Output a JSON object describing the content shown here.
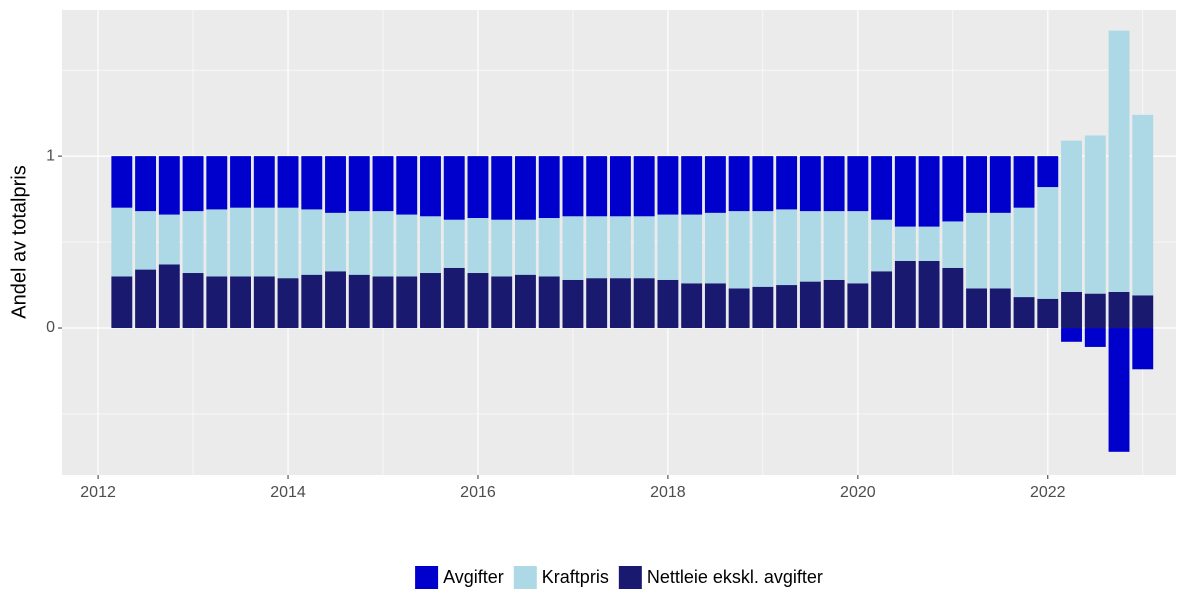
{
  "chart_data": {
    "type": "bar",
    "stacked": true,
    "y_label": "Andel av totalpris",
    "x": [
      2012.25,
      2012.5,
      2012.75,
      2013.0,
      2013.25,
      2013.5,
      2013.75,
      2014.0,
      2014.25,
      2014.5,
      2014.75,
      2015.0,
      2015.25,
      2015.5,
      2015.75,
      2016.0,
      2016.25,
      2016.5,
      2016.75,
      2017.0,
      2017.25,
      2017.5,
      2017.75,
      2018.0,
      2018.25,
      2018.5,
      2018.75,
      2019.0,
      2019.25,
      2019.5,
      2019.75,
      2020.0,
      2020.25,
      2020.5,
      2020.75,
      2021.0,
      2021.25,
      2021.5,
      2021.75,
      2022.0,
      2022.25,
      2022.5,
      2022.75,
      2023.0
    ],
    "series": [
      {
        "name": "Avgifter",
        "color": "#0000cd",
        "values": [
          0.3,
          0.32,
          0.34,
          0.32,
          0.31,
          0.3,
          0.3,
          0.3,
          0.31,
          0.33,
          0.32,
          0.32,
          0.34,
          0.35,
          0.37,
          0.36,
          0.37,
          0.37,
          0.36,
          0.35,
          0.35,
          0.35,
          0.35,
          0.34,
          0.34,
          0.33,
          0.32,
          0.32,
          0.31,
          0.32,
          0.32,
          0.32,
          0.37,
          0.41,
          0.41,
          0.38,
          0.33,
          0.33,
          0.3,
          0.18,
          -0.08,
          -0.11,
          -0.72,
          -0.24
        ]
      },
      {
        "name": "Kraftpris",
        "color": "#add8e6",
        "values": [
          0.4,
          0.34,
          0.29,
          0.36,
          0.39,
          0.4,
          0.4,
          0.41,
          0.38,
          0.34,
          0.37,
          0.38,
          0.36,
          0.33,
          0.28,
          0.32,
          0.33,
          0.32,
          0.34,
          0.37,
          0.36,
          0.36,
          0.36,
          0.38,
          0.4,
          0.41,
          0.45,
          0.44,
          0.44,
          0.41,
          0.4,
          0.42,
          0.3,
          0.2,
          0.2,
          0.27,
          0.44,
          0.44,
          0.52,
          0.65,
          0.88,
          0.92,
          1.52,
          1.05
        ]
      },
      {
        "name": "Nettleie ekskl. avgifter",
        "color": "#191970",
        "values": [
          0.3,
          0.34,
          0.37,
          0.32,
          0.3,
          0.3,
          0.3,
          0.29,
          0.31,
          0.33,
          0.31,
          0.3,
          0.3,
          0.32,
          0.35,
          0.32,
          0.3,
          0.31,
          0.3,
          0.28,
          0.29,
          0.29,
          0.29,
          0.28,
          0.26,
          0.26,
          0.23,
          0.24,
          0.25,
          0.27,
          0.28,
          0.26,
          0.33,
          0.39,
          0.39,
          0.35,
          0.23,
          0.23,
          0.18,
          0.17,
          0.21,
          0.2,
          0.21,
          0.19
        ]
      }
    ],
    "xlim": [
      2011.62,
      2023.35
    ],
    "xticks": [
      2012,
      2014,
      2016,
      2018,
      2020,
      2022
    ],
    "ylim": [
      -0.855,
      1.85
    ],
    "yticks": [
      0,
      1
    ],
    "bar_width": 0.22,
    "grid": true,
    "legend": "bottom"
  }
}
